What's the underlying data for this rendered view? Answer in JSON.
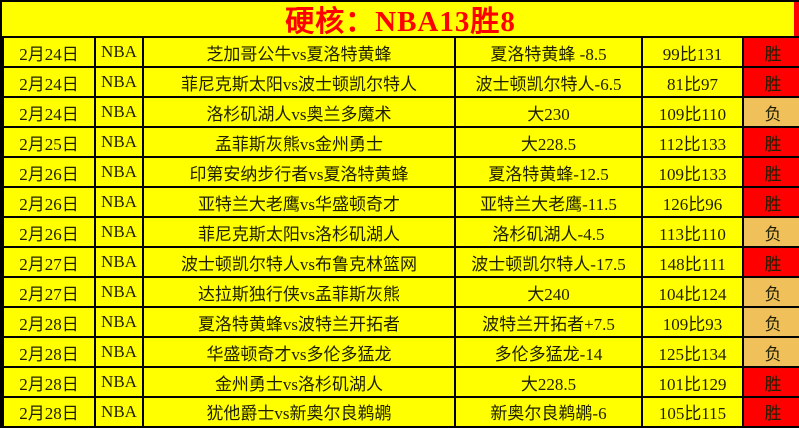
{
  "title": "硬核：NBA13胜8",
  "labels": {
    "win": "胜",
    "loss": "负"
  },
  "colors": {
    "background": "#FFFF00",
    "grid": "#000000",
    "title_text": "#FF0000",
    "title_strip": "#FF0000",
    "cell_text": "#1F1F00",
    "win_bg": "#FE0000",
    "loss_bg": "#F0C05A"
  },
  "table": {
    "rows": [
      {
        "date": "2月24日",
        "league": "NBA",
        "matchup": "芝加哥公牛vs夏洛特黄蜂",
        "pick": "夏洛特黄蜂 -8.5",
        "score": "99比131",
        "result": "胜"
      },
      {
        "date": "2月24日",
        "league": "NBA",
        "matchup": "菲尼克斯太阳vs波士顿凯尔特人",
        "pick": "波士顿凯尔特人-6.5",
        "score": "81比97",
        "result": "胜"
      },
      {
        "date": "2月24日",
        "league": "NBA",
        "matchup": "洛杉矶湖人vs奥兰多魔术",
        "pick": "大230",
        "score": "109比110",
        "result": "负"
      },
      {
        "date": "2月25日",
        "league": "NBA",
        "matchup": "孟菲斯灰熊vs金州勇士",
        "pick": "大228.5",
        "score": "112比133",
        "result": "胜"
      },
      {
        "date": "2月26日",
        "league": "NBA",
        "matchup": "印第安纳步行者vs夏洛特黄蜂",
        "pick": "夏洛特黄蜂-12.5",
        "score": "109比133",
        "result": "胜"
      },
      {
        "date": "2月26日",
        "league": "NBA",
        "matchup": "亚特兰大老鹰vs华盛顿奇才",
        "pick": "亚特兰大老鹰-11.5",
        "score": "126比96",
        "result": "胜"
      },
      {
        "date": "2月26日",
        "league": "NBA",
        "matchup": "菲尼克斯太阳vs洛杉矶湖人",
        "pick": "洛杉矶湖人-4.5",
        "score": "113比110",
        "result": "负"
      },
      {
        "date": "2月27日",
        "league": "NBA",
        "matchup": "波士顿凯尔特人vs布鲁克林篮网",
        "pick": "波士顿凯尔特人-17.5",
        "score": "148比111",
        "result": "胜"
      },
      {
        "date": "2月27日",
        "league": "NBA",
        "matchup": "达拉斯独行侠vs孟菲斯灰熊",
        "pick": "大240",
        "score": "104比124",
        "result": "负"
      },
      {
        "date": "2月28日",
        "league": "NBA",
        "matchup": "夏洛特黄蜂vs波特兰开拓者",
        "pick": "波特兰开拓者+7.5",
        "score": "109比93",
        "result": "负"
      },
      {
        "date": "2月28日",
        "league": "NBA",
        "matchup": "华盛顿奇才vs多伦多猛龙",
        "pick": "多伦多猛龙-14",
        "score": "125比134",
        "result": "负"
      },
      {
        "date": "2月28日",
        "league": "NBA",
        "matchup": "金州勇士vs洛杉矶湖人",
        "pick": "大228.5",
        "score": "101比129",
        "result": "胜"
      },
      {
        "date": "2月28日",
        "league": "NBA",
        "matchup": "犹他爵士vs新奥尔良鹈鹕",
        "pick": "新奥尔良鹈鹕-6",
        "score": "105比115",
        "result": "胜"
      }
    ]
  }
}
